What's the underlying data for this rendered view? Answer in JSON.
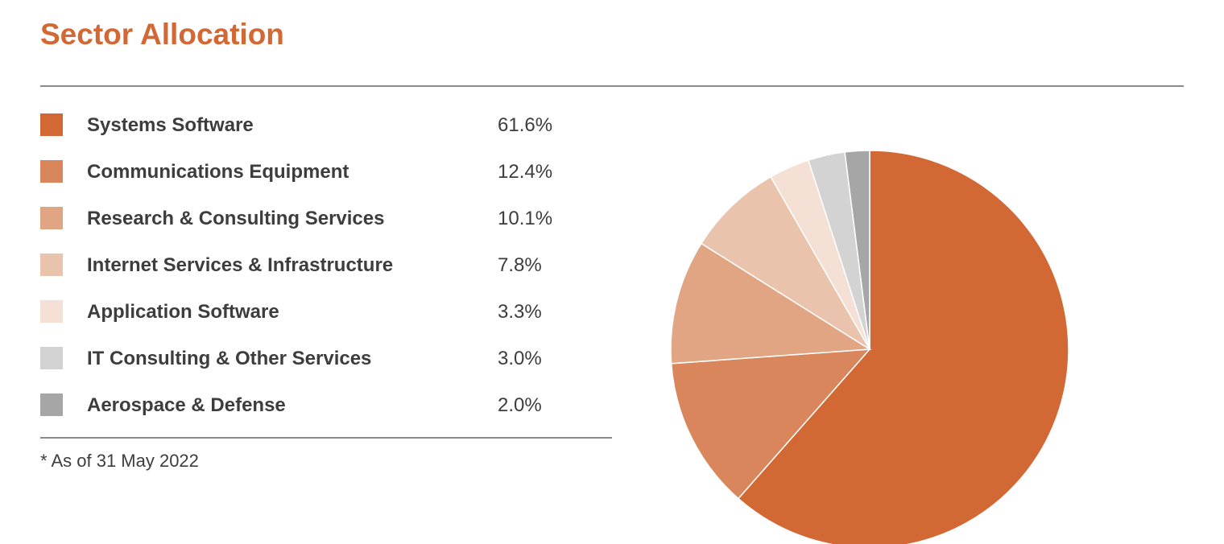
{
  "title": "Sector Allocation",
  "footnote": "* As of 31 May 2022",
  "chart_data": {
    "type": "pie",
    "slices": [
      {
        "label": "Systems Software",
        "value": 61.6,
        "display": "61.6%",
        "color": "#d26834"
      },
      {
        "label": "Communications Equipment",
        "value": 12.4,
        "display": "12.4%",
        "color": "#d9865c"
      },
      {
        "label": "Research & Consulting Services",
        "value": 10.1,
        "display": "10.1%",
        "color": "#e2a584"
      },
      {
        "label": "Internet Services & Infrastructure",
        "value": 7.8,
        "display": "7.8%",
        "color": "#eac3ac"
      },
      {
        "label": "Application Software",
        "value": 3.3,
        "display": "3.3%",
        "color": "#f4e0d5"
      },
      {
        "label": "IT Consulting & Other Services",
        "value": 3.0,
        "display": "3.0%",
        "color": "#d3d3d3"
      },
      {
        "label": "Aerospace & Defense",
        "value": 2.0,
        "display": "2.0%",
        "color": "#a6a6a6"
      }
    ],
    "start": "12 o'clock",
    "direction": "clockwise",
    "legend_position": "left"
  }
}
